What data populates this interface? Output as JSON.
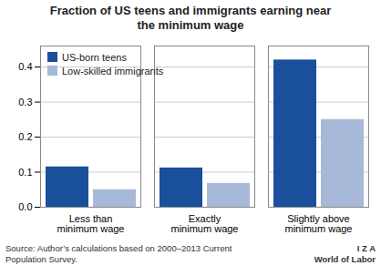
{
  "chart_data": {
    "type": "bar",
    "title": "Fraction of US teens and immigrants earning near\nthe minimum wage",
    "categories": [
      "Less than\nminimum wage",
      "Exactly\nminimum wage",
      "Slightly above\nminimum wage"
    ],
    "series": [
      {
        "name": "US-born teens",
        "color": "#1a4f9c",
        "values": [
          0.115,
          0.112,
          0.42
        ]
      },
      {
        "name": "Low-skilled immigrants",
        "color": "#a8b8d8",
        "values": [
          0.05,
          0.068,
          0.25
        ]
      }
    ],
    "ylim": [
      0,
      0.46
    ],
    "yticks": [
      {
        "value": 0,
        "label": "0.0"
      },
      0.1,
      0.2,
      0.3,
      0.4
    ],
    "grid": true,
    "legend": "upper left",
    "annotations": [
      "Source: Author’s calculations based on 2000–2013 Current\nPopulation Survey.",
      "I  Z  A",
      "World of Labor"
    ]
  }
}
